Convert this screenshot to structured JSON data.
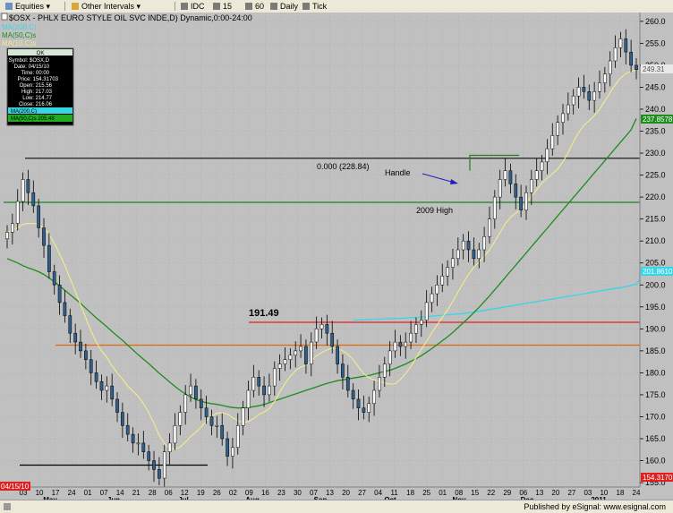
{
  "toolbar": {
    "items": [
      "Equities",
      "Other Intervals",
      "IDC",
      "15",
      "60",
      "Daily",
      "Tick"
    ]
  },
  "chart_title": "$OSX - PHLX EURO STYLE OIL SVC INDE,D) Dynamic,0:00-24:00",
  "legend": {
    "ma_lines": [
      "MA(200,C)",
      "MA(50,C)s",
      "MA(10,C)s"
    ],
    "box_header": "OK",
    "box_lines": [
      "Symbol: $OSX,D",
      "Date: 04/15/10",
      "Time: 00:00",
      "Price: 154.31703",
      "Open: 215.56",
      "High: 217.03",
      "Low: 214.77",
      "Close: 216.06"
    ],
    "box_ma_200": "MA(200,C)",
    "box_ma_50": "MA(50,C)s 205.48"
  },
  "annotations": {
    "fib_label": "0.000 (228.84)",
    "handle_label": "Handle",
    "high_2009_label": "2009 High",
    "value_191": "191.49"
  },
  "price_flags": {
    "last": "249.31",
    "ma50": "237.8578",
    "ma200": "201.8610",
    "bottom": "154.3170",
    "bottom_date": "04/15/10"
  },
  "footer": {
    "text": "Published by eSignal: www.esignal.com"
  },
  "colors": {
    "background": "#c0c0c0",
    "up_candle": "#ffffff",
    "down_candle": "#2f5f8a",
    "ma10": "#f2ec8a",
    "ma50": "#1e8c1e",
    "ma200": "#37d6e6",
    "level_191": "#e02020",
    "level_186": "#e06a10",
    "level_2009": "#1f7f1f",
    "fib": "#202020"
  },
  "chart_data": {
    "type": "candlestick",
    "title": "$OSX - PHLX EURO STYLE OIL SVC INDE,D) Dynamic,0:00-24:00",
    "ylim": [
      154,
      262
    ],
    "yticks": [
      155,
      160,
      165,
      170,
      175,
      180,
      185,
      190,
      195,
      200,
      205,
      210,
      215,
      220,
      225,
      230,
      235,
      240,
      245,
      250,
      255,
      260
    ],
    "x_tick_labels": [
      "03",
      "10",
      "17",
      "24",
      "01",
      "07",
      "14",
      "21",
      "28",
      "06",
      "12",
      "19",
      "26",
      "02",
      "09",
      "16",
      "23",
      "30",
      "07",
      "13",
      "20",
      "27",
      "04",
      "11",
      "18",
      "25",
      "01",
      "08",
      "15",
      "22",
      "29",
      "06",
      "13",
      "20",
      "27",
      "03",
      "10",
      "18",
      "24"
    ],
    "month_labels": [
      "May",
      "Jun",
      "Jul",
      "Aug",
      "Sep",
      "Oct",
      "Nov",
      "Dec",
      "2011"
    ],
    "closes": [
      212,
      214,
      219,
      224,
      221,
      218,
      213,
      209,
      203,
      200,
      196,
      193,
      189,
      187,
      185,
      183,
      180,
      178,
      176,
      177,
      174,
      171,
      168,
      166,
      164,
      164,
      162,
      160,
      158,
      156,
      162,
      164,
      168,
      171,
      175,
      177,
      174,
      172,
      170,
      168,
      168,
      165,
      161,
      163,
      168,
      172,
      176,
      179,
      177,
      175,
      177,
      181,
      182,
      183,
      184,
      185,
      186,
      182,
      187,
      190,
      191,
      189,
      186,
      182,
      179,
      176,
      174,
      172,
      171,
      173,
      176,
      179,
      182,
      185,
      187,
      186,
      187,
      189,
      191,
      192,
      196,
      198,
      200,
      202,
      204,
      206,
      208,
      210,
      208,
      206,
      208,
      211,
      215,
      220,
      224,
      226,
      223,
      220,
      217,
      221,
      224,
      226,
      228,
      231,
      234,
      237,
      239,
      241,
      243,
      245,
      244,
      242,
      244,
      246,
      248,
      251,
      254,
      256,
      253,
      250,
      249
    ],
    "ma10": [
      212,
      212.5,
      213,
      213.8,
      214,
      214,
      213.8,
      213,
      211.5,
      209.5,
      207,
      204.5,
      201.5,
      198.5,
      195.5,
      192.5,
      189.5,
      187,
      185,
      183.5,
      181.6,
      180,
      178.6,
      177,
      175.8,
      174.6,
      173,
      171,
      168.5,
      165.8,
      163.9,
      162.8,
      162.6,
      163.1,
      164.2,
      165.5,
      166.5,
      167.7,
      169,
      170.2,
      170.8,
      170.9,
      170.6,
      169.8,
      169.1,
      168.7,
      168.9,
      169.6,
      170.5,
      171.1,
      171.9,
      173.5,
      175.6,
      177.6,
      179.2,
      180.5,
      181.3,
      181.7,
      182.6,
      183.9,
      184.6,
      185.2,
      185.6,
      185.5,
      185,
      184.2,
      183,
      181.4,
      179.8,
      178.9,
      178.4,
      178.1,
      177.7,
      177.4,
      177.5,
      178.5,
      179.8,
      181.4,
      183.4,
      185.3,
      187.2,
      189.1,
      190.9,
      192.6,
      194.3,
      196.3,
      198.4,
      200.5,
      202.4,
      204,
      205.2,
      206.5,
      208,
      209.9,
      211.9,
      213.9,
      215.4,
      216.4,
      217.1,
      218.6,
      220.2,
      221.7,
      223.2,
      224.3,
      225.3,
      226.4,
      228,
      230.1,
      232.6,
      234.7,
      236.3,
      237.4,
      238.5,
      240,
      241.9,
      243.8,
      245.6,
      247.1,
      248.1,
      248.6,
      248.9
    ],
    "ma50": [
      206,
      205.5,
      205,
      204.4,
      203.9,
      203.5,
      203,
      202.4,
      201.6,
      200.7,
      199.8,
      198.8,
      197.8,
      196.8,
      195.8,
      194.7,
      193.6,
      192.5,
      191.5,
      190.5,
      189.4,
      188.4,
      187.4,
      186.3,
      185.2,
      184.1,
      183.1,
      182.1,
      181,
      179.9,
      178.9,
      177.9,
      176.9,
      176,
      175.2,
      174.5,
      173.9,
      173.5,
      173.2,
      173,
      172.8,
      172.6,
      172.3,
      172.1,
      172,
      172,
      172.1,
      172.3,
      172.5,
      172.8,
      173.2,
      173.6,
      174,
      174.4,
      174.8,
      175.2,
      175.6,
      176,
      176.4,
      176.8,
      177.2,
      177.6,
      177.9,
      178.2,
      178.4,
      178.6,
      178.8,
      179,
      179.2,
      179.4,
      179.7,
      180,
      180.3,
      180.6,
      181,
      181.5,
      182,
      182.6,
      183.2,
      183.9,
      184.7,
      185.5,
      186.4,
      187.3,
      188.2,
      189.2,
      190.3,
      191.4,
      192.5,
      193.7,
      194.9,
      196.2,
      197.5,
      198.9,
      200.3,
      201.7,
      203.1,
      204.5,
      205.9,
      207.3,
      208.7,
      210.1,
      211.5,
      212.9,
      214.3,
      215.7,
      217.1,
      218.5,
      219.9,
      221.3,
      222.7,
      224.1,
      225.5,
      226.9,
      228.3,
      229.7,
      231.1,
      232.5,
      233.9,
      235.3,
      237.9
    ],
    "ma200_start_index": 66,
    "ma200": [
      192,
      192,
      192.1,
      192.1,
      192.2,
      192.2,
      192.3,
      192.3,
      192.4,
      192.4,
      192.5,
      192.6,
      192.6,
      192.7,
      192.8,
      192.9,
      193,
      193.1,
      193.2,
      193.3,
      193.4,
      193.5,
      193.7,
      193.8,
      194,
      194.2,
      194.4,
      194.6,
      194.8,
      195,
      195.2,
      195.4,
      195.6,
      195.8,
      196,
      196.2,
      196.4,
      196.6,
      196.8,
      197,
      197.2,
      197.4,
      197.6,
      197.8,
      198,
      198.2,
      198.4,
      198.6,
      198.8,
      199,
      199.2,
      199.4,
      199.6,
      199.9,
      200.2,
      201.86
    ],
    "levels": [
      {
        "name": "fib-0",
        "value": 228.84
      },
      {
        "name": "2009-high",
        "value": 218.8
      },
      {
        "name": "191.49",
        "value": 191.49
      },
      {
        "name": "orange",
        "value": 186.3
      },
      {
        "name": "low-support",
        "value": 159
      }
    ]
  }
}
